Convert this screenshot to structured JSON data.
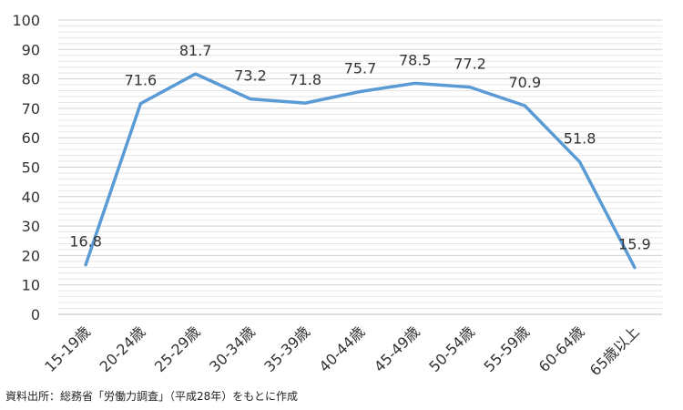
{
  "chart_data": {
    "type": "line",
    "categories": [
      "15-19歳",
      "20-24歳",
      "25-29歳",
      "30-34歳",
      "35-39歳",
      "40-44歳",
      "45-49歳",
      "50-54歳",
      "55-59歳",
      "60-64歳",
      "65歳以上"
    ],
    "values": [
      16.8,
      71.6,
      81.7,
      73.2,
      71.8,
      75.7,
      78.5,
      77.2,
      70.9,
      51.8,
      15.9
    ],
    "value_labels": [
      "16.8",
      "71.6",
      "81.7",
      "73.2",
      "71.8",
      "75.7",
      "78.5",
      "77.2",
      "70.9",
      "51.8",
      "15.9"
    ],
    "ylim": [
      0,
      100
    ],
    "yticks": [
      "0",
      "10",
      "20",
      "30",
      "40",
      "50",
      "60",
      "70",
      "80",
      "90",
      "100"
    ],
    "grid": true,
    "line_color": "#5b9bd5",
    "grid_color": "#d9d9d9"
  },
  "source_note": "資料出所：総務省「労働力調査」（平成28年）をもとに作成"
}
